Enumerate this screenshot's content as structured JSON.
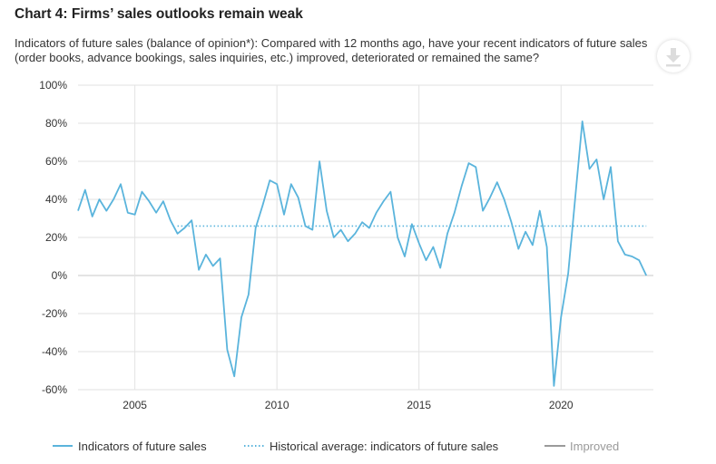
{
  "title": "Chart 4: Firms’ sales outlooks remain weak",
  "subtitle": "Indicators of future sales (balance of opinion*): Compared with 12 months ago, have your recent indicators of future sales (order books, advance bookings, sales inquiries, etc.) improved, deteriorated or remained the same?",
  "download_icon": "download-icon",
  "colors": {
    "series": "#5ab4dc",
    "average": "#5ab4dc",
    "improved": "#9a9a9a",
    "grid": "#e2e2e2",
    "zero": "#c8c8c8"
  },
  "chart_data": {
    "type": "line",
    "title": "Chart 4: Firms’ sales outlooks remain weak",
    "xlabel": "",
    "ylabel": "",
    "ylim": [
      -60,
      100
    ],
    "xlim": [
      2003.0,
      2023.25
    ],
    "grid": true,
    "legend_position": "bottom",
    "y_ticks": [
      {
        "value": 100,
        "label": "100%"
      },
      {
        "value": 80,
        "label": "80%"
      },
      {
        "value": 60,
        "label": "60%"
      },
      {
        "value": 40,
        "label": "40%"
      },
      {
        "value": 20,
        "label": "20%"
      },
      {
        "value": 0,
        "label": "0%"
      },
      {
        "value": -20,
        "label": "-20%"
      },
      {
        "value": -40,
        "label": "-40%"
      },
      {
        "value": -60,
        "label": "-60%"
      }
    ],
    "x_ticks": [
      {
        "value": 2005,
        "label": "2005"
      },
      {
        "value": 2010,
        "label": "2010"
      },
      {
        "value": 2015,
        "label": "2015"
      },
      {
        "value": 2020,
        "label": "2020"
      }
    ],
    "series": [
      {
        "name": "Indicators of future sales",
        "x": [
          "2003Q1",
          "2003Q2",
          "2003Q3",
          "2003Q4",
          "2004Q1",
          "2004Q2",
          "2004Q3",
          "2004Q4",
          "2005Q1",
          "2005Q2",
          "2005Q3",
          "2005Q4",
          "2006Q1",
          "2006Q2",
          "2006Q3",
          "2006Q4",
          "2007Q1",
          "2007Q2",
          "2007Q3",
          "2007Q4",
          "2008Q1",
          "2008Q2",
          "2008Q3",
          "2008Q4",
          "2009Q1",
          "2009Q2",
          "2009Q3",
          "2009Q4",
          "2010Q1",
          "2010Q2",
          "2010Q3",
          "2010Q4",
          "2011Q1",
          "2011Q2",
          "2011Q3",
          "2011Q4",
          "2012Q1",
          "2012Q2",
          "2012Q3",
          "2012Q4",
          "2013Q1",
          "2013Q2",
          "2013Q3",
          "2013Q4",
          "2014Q1",
          "2014Q2",
          "2014Q3",
          "2014Q4",
          "2015Q1",
          "2015Q2",
          "2015Q3",
          "2015Q4",
          "2016Q1",
          "2016Q2",
          "2016Q3",
          "2016Q4",
          "2017Q1",
          "2017Q2",
          "2017Q3",
          "2017Q4",
          "2018Q1",
          "2018Q2",
          "2018Q3",
          "2018Q4",
          "2019Q1",
          "2019Q2",
          "2019Q3",
          "2019Q4",
          "2020Q1",
          "2020Q2",
          "2020Q3",
          "2020Q4",
          "2021Q1",
          "2021Q2",
          "2021Q3",
          "2021Q4",
          "2022Q1",
          "2022Q2",
          "2022Q3",
          "2022Q4",
          "2023Q1"
        ],
        "values": [
          34,
          45,
          31,
          40,
          34,
          40,
          48,
          33,
          32,
          44,
          39,
          33,
          39,
          29,
          22,
          25,
          29,
          3,
          11,
          5,
          9,
          -39,
          -53,
          -22,
          -10,
          25,
          37,
          50,
          48,
          32,
          48,
          41,
          26,
          24,
          60,
          34,
          20,
          24,
          18,
          22,
          28,
          25,
          33,
          39,
          44,
          20,
          10,
          27,
          17,
          8,
          15,
          4,
          22,
          33,
          47,
          59,
          57,
          34,
          41,
          49,
          40,
          28,
          14,
          23,
          16,
          34,
          15,
          -58,
          -22,
          1,
          41,
          81,
          56,
          61,
          40,
          57,
          18,
          11,
          10,
          8,
          0
        ]
      },
      {
        "name": "Historical average: indicators of future sales",
        "x": [
          "2006Q3",
          "2023Q1"
        ],
        "values": [
          26,
          26
        ]
      }
    ]
  },
  "legend": [
    {
      "label": "Indicators of future sales",
      "style": "solid"
    },
    {
      "label": "Historical average: indicators of future sales",
      "style": "dotted"
    },
    {
      "label": "Improved",
      "style": "solid-muted"
    }
  ]
}
